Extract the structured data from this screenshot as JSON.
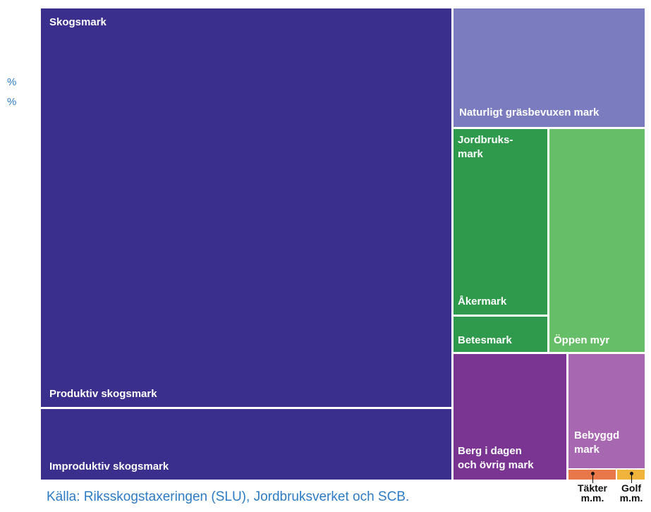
{
  "heading_fragment": "",
  "left_axis_fragments": [
    "%",
    "%"
  ],
  "source": "Källa: Riksskogstaxeringen (SLU), Jordbruksverket och SCB.",
  "chart_data": {
    "type": "treemap",
    "title": "",
    "groups": [
      {
        "name": "Skogsmark",
        "color": "#3b2f8e",
        "children": [
          {
            "name": "Produktiv skogsmark",
            "color": "#3b2f8e",
            "value": 23.6
          },
          {
            "name": "Improduktiv skogsmark",
            "color": "#3b2f8e",
            "value": 4.3
          }
        ]
      },
      {
        "name": "Naturligt gräsbevuxen mark",
        "color": "#7b7cc0",
        "value": 3.0
      },
      {
        "name": "Jordbruksmark",
        "label": "Jordbruks-\nmark",
        "color": "#2f9a4b",
        "children": [
          {
            "name": "Åkermark",
            "color": "#2f9a4b",
            "value": 2.6
          },
          {
            "name": "Betesmark",
            "color": "#2f9a4b",
            "value": 0.45
          }
        ]
      },
      {
        "name": "Öppen myr",
        "color": "#67be68",
        "value": 2.6
      },
      {
        "name": "Berg i dagen och övrig mark",
        "label": "Berg i dagen\noch övrig mark",
        "color": "#7a3492",
        "value": 2.4
      },
      {
        "name": "Bebyggd mark",
        "label": "Bebyggd\nmark",
        "color": "#a868b1",
        "value": 1.25
      },
      {
        "name": "Täkter m.m.",
        "label": "Täkter\nm.m.",
        "color": "#e8784a",
        "value": 0.1
      },
      {
        "name": "Golf m.m.",
        "label": "Golf\nm.m.",
        "color": "#f0b43c",
        "value": 0.05
      }
    ]
  }
}
